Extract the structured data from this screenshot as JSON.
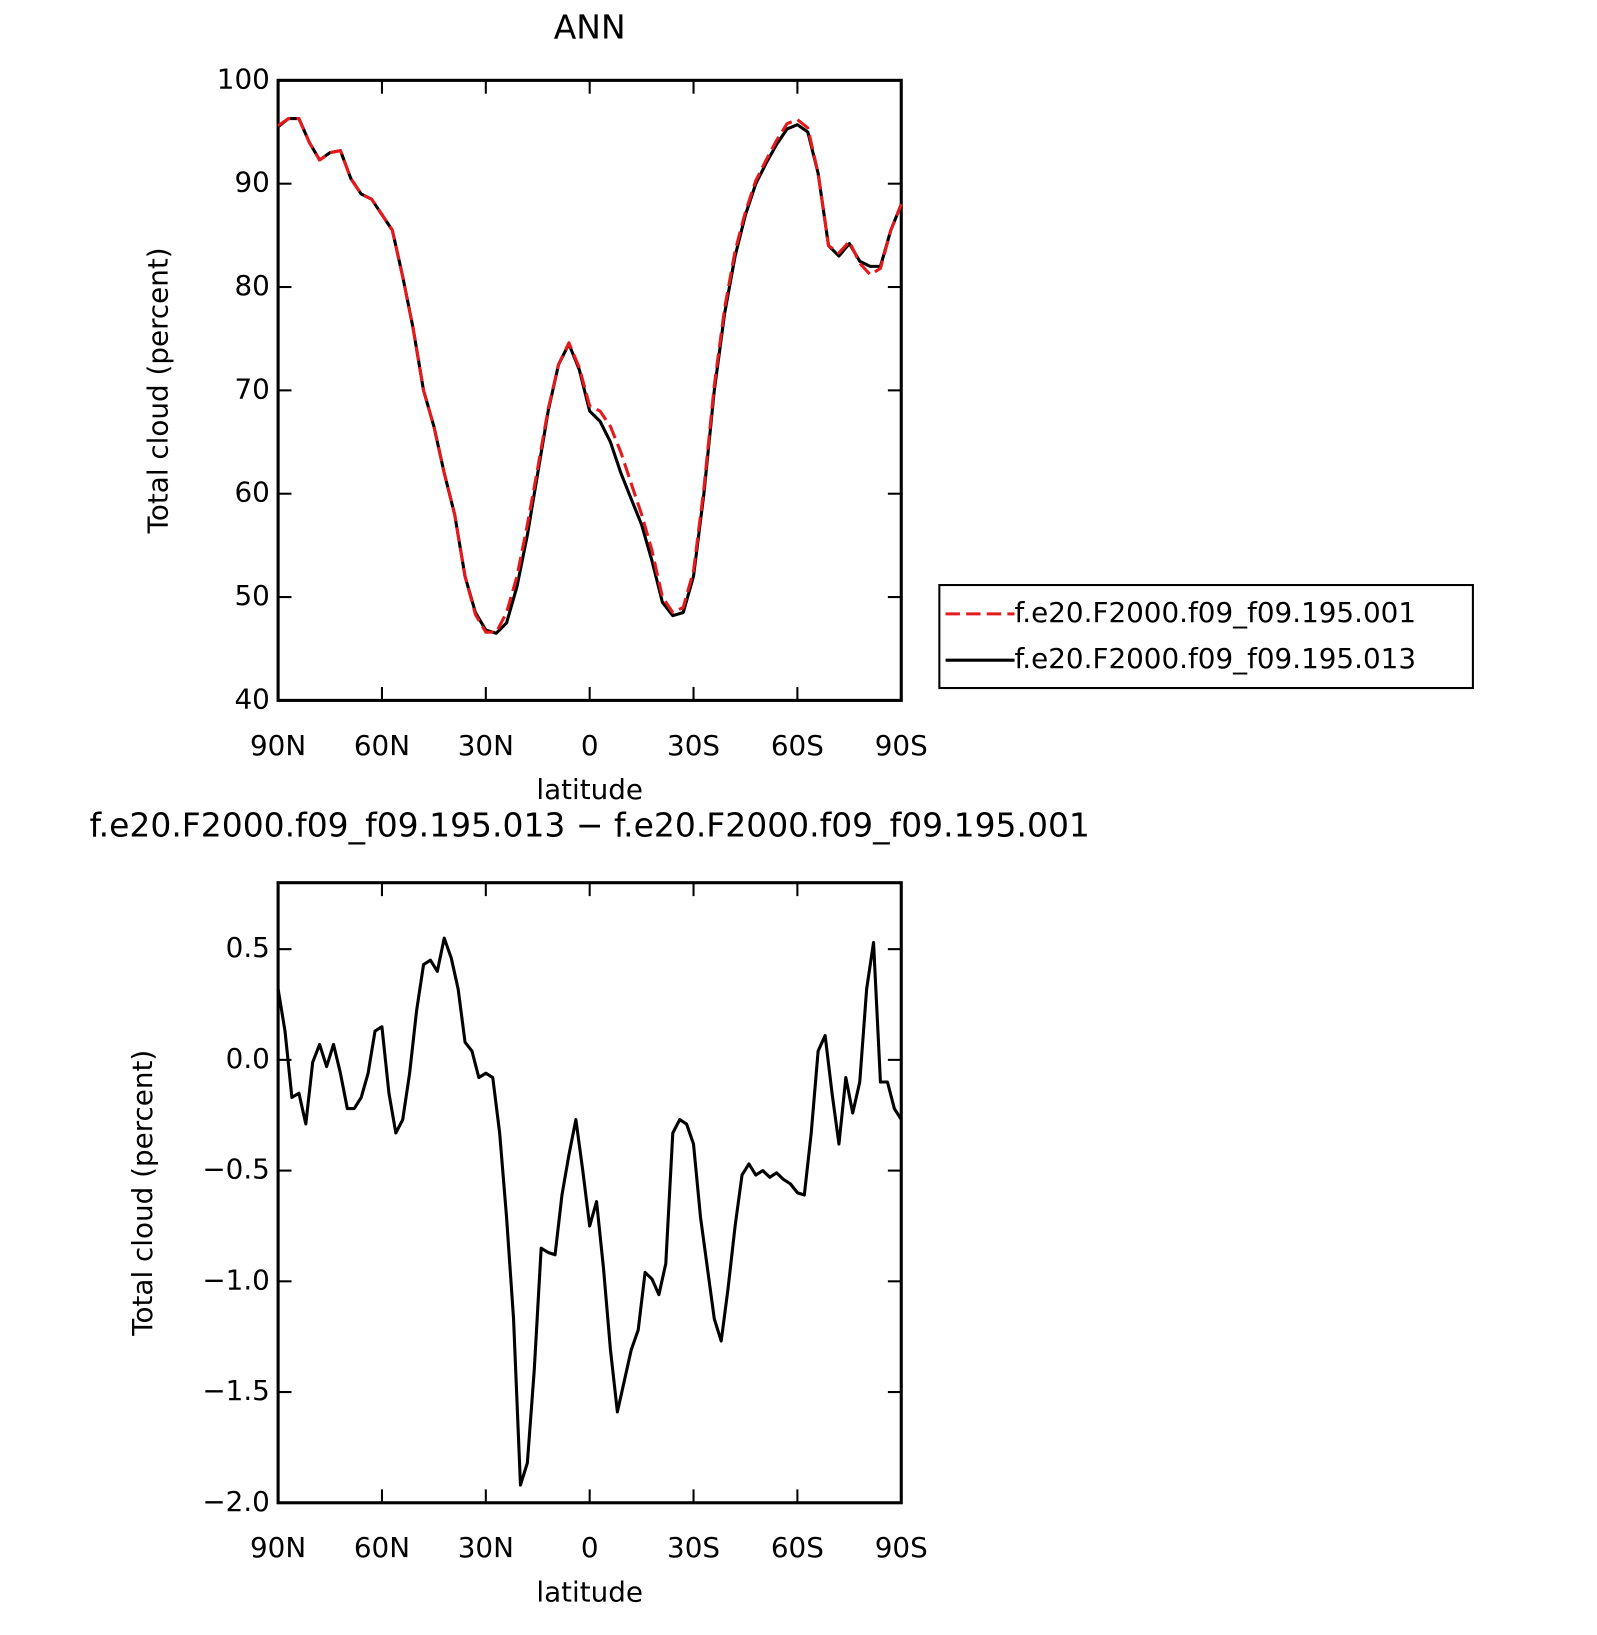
{
  "chart_data": [
    {
      "type": "line",
      "title": "ANN",
      "x_label": "latitude",
      "y_label": "Total cloud (percent)",
      "x": [
        90,
        87,
        84,
        81,
        78,
        75,
        72,
        69,
        66,
        63,
        60,
        57,
        54,
        51,
        48,
        45,
        42,
        39,
        36,
        33,
        30,
        27,
        24,
        21,
        18,
        15,
        12,
        9,
        6,
        3,
        0,
        -3,
        -6,
        -9,
        -12,
        -15,
        -18,
        -21,
        -24,
        -27,
        -30,
        -33,
        -36,
        -39,
        -42,
        -45,
        -48,
        -51,
        -54,
        -57,
        -60,
        -63,
        -66,
        -69,
        -72,
        -75,
        -78,
        -81,
        -84,
        -87,
        -90
      ],
      "xlim": [
        90,
        -90
      ],
      "xticks": [
        {
          "value": 90,
          "label": "90N"
        },
        {
          "value": 60,
          "label": "60N"
        },
        {
          "value": 30,
          "label": "30N"
        },
        0,
        {
          "value": -30,
          "label": "30S"
        },
        {
          "value": -60,
          "label": "60S"
        },
        {
          "value": -90,
          "label": "90S"
        }
      ],
      "ylim": [
        40,
        100
      ],
      "yticks": [
        40,
        50,
        60,
        70,
        80,
        90,
        100
      ],
      "legend_position": "right",
      "series": [
        {
          "name": "f.e20.F2000.f09_f09.195.001",
          "color": "#e41a1c",
          "line_style": "dashed",
          "values": [
            95.6,
            96.3,
            96.3,
            94,
            92.3,
            93,
            93.2,
            90.5,
            89,
            88.5,
            87,
            85.5,
            81,
            76,
            70,
            66.5,
            62,
            58,
            52,
            48.3,
            46.6,
            46.6,
            48.5,
            52,
            57,
            62.5,
            68.2,
            72.5,
            74.6,
            72.2,
            68.5,
            68,
            66.5,
            64,
            61,
            58,
            54.5,
            50,
            48.5,
            49,
            52.5,
            60.5,
            70.5,
            78,
            83.5,
            87.3,
            90.3,
            92.3,
            94.2,
            95.8,
            96.2,
            95.4,
            91,
            84,
            83.3,
            84.4,
            82.3,
            81.2,
            81.8,
            85.5,
            88
          ]
        },
        {
          "name": "f.e20.F2000.f09_f09.195.013",
          "color": "#000000",
          "line_style": "solid",
          "values": [
            95.5,
            96.3,
            96.3,
            94,
            92.3,
            93,
            93.2,
            90.5,
            89,
            88.5,
            87,
            85.5,
            81,
            76,
            70,
            66.5,
            62,
            58,
            52,
            48.5,
            46.8,
            46.5,
            47.5,
            51,
            56,
            62,
            68,
            72.5,
            74.5,
            72,
            68,
            67,
            65,
            62,
            59.5,
            57,
            53.5,
            49.5,
            48.2,
            48.5,
            52,
            60,
            70,
            77.5,
            83,
            87,
            90,
            92,
            93.8,
            95.3,
            95.7,
            95,
            91,
            84,
            83,
            84.2,
            82.5,
            82,
            82,
            85.5,
            88
          ]
        }
      ]
    },
    {
      "type": "line",
      "title": "f.e20.F2000.f09_f09.195.013 − f.e20.F2000.f09_f09.195.001",
      "x_label": "latitude",
      "y_label": "Total cloud (percent)",
      "x": [
        90,
        88,
        86,
        84,
        82,
        80,
        78,
        76,
        74,
        72,
        70,
        68,
        66,
        64,
        62,
        60,
        58,
        56,
        54,
        52,
        50,
        48,
        46,
        44,
        42,
        40,
        38,
        36,
        34,
        32,
        30,
        28,
        26,
        24,
        22,
        20,
        18,
        16,
        14,
        12,
        10,
        8,
        6,
        4,
        2,
        0,
        -2,
        -4,
        -6,
        -8,
        -10,
        -12,
        -14,
        -16,
        -18,
        -20,
        -22,
        -24,
        -26,
        -28,
        -30,
        -32,
        -34,
        -36,
        -38,
        -40,
        -42,
        -44,
        -46,
        -48,
        -50,
        -52,
        -54,
        -56,
        -58,
        -60,
        -62,
        -64,
        -66,
        -68,
        -70,
        -72,
        -74,
        -76,
        -78,
        -80,
        -82,
        -84,
        -86,
        -88,
        -90
      ],
      "xlim": [
        90,
        -90
      ],
      "xticks": [
        {
          "value": 90,
          "label": "90N"
        },
        {
          "value": 60,
          "label": "60N"
        },
        {
          "value": 30,
          "label": "30N"
        },
        0,
        {
          "value": -30,
          "label": "30S"
        },
        {
          "value": -60,
          "label": "60S"
        },
        {
          "value": -90,
          "label": "90S"
        }
      ],
      "ylim": [
        -2,
        0.8
      ],
      "yticks": [
        {
          "value": -2,
          "label": "−2.0"
        },
        {
          "value": -1.5,
          "label": "−1.5"
        },
        {
          "value": -1,
          "label": "−1.0"
        },
        {
          "value": -0.5,
          "label": "−0.5"
        },
        {
          "value": 0,
          "label": "0.0"
        },
        0.5
      ],
      "color": "#000000",
      "values": [
        0.32,
        0.13,
        -0.17,
        -0.15,
        -0.29,
        -0.01,
        0.07,
        -0.03,
        0.07,
        -0.06,
        -0.22,
        -0.22,
        -0.17,
        -0.06,
        0.13,
        0.15,
        -0.15,
        -0.33,
        -0.27,
        -0.06,
        0.22,
        0.43,
        0.45,
        0.4,
        0.55,
        0.46,
        0.32,
        0.08,
        0.04,
        -0.08,
        -0.06,
        -0.08,
        -0.33,
        -0.71,
        -1.17,
        -1.92,
        -1.82,
        -1.4,
        -0.85,
        -0.87,
        -0.88,
        -0.61,
        -0.43,
        -0.27,
        -0.5,
        -0.75,
        -0.64,
        -0.94,
        -1.31,
        -1.59,
        -1.45,
        -1.31,
        -1.22,
        -0.96,
        -0.99,
        -1.06,
        -0.92,
        -0.33,
        -0.27,
        -0.29,
        -0.38,
        -0.71,
        -0.94,
        -1.17,
        -1.27,
        -1.03,
        -0.75,
        -0.52,
        -0.47,
        -0.52,
        -0.5,
        -0.53,
        -0.51,
        -0.54,
        -0.56,
        -0.6,
        -0.61,
        -0.33,
        0.04,
        0.11,
        -0.15,
        -0.38,
        -0.08,
        -0.24,
        -0.1,
        0.32,
        0.53,
        -0.1,
        -0.1,
        -0.22,
        -0.27
      ]
    }
  ]
}
